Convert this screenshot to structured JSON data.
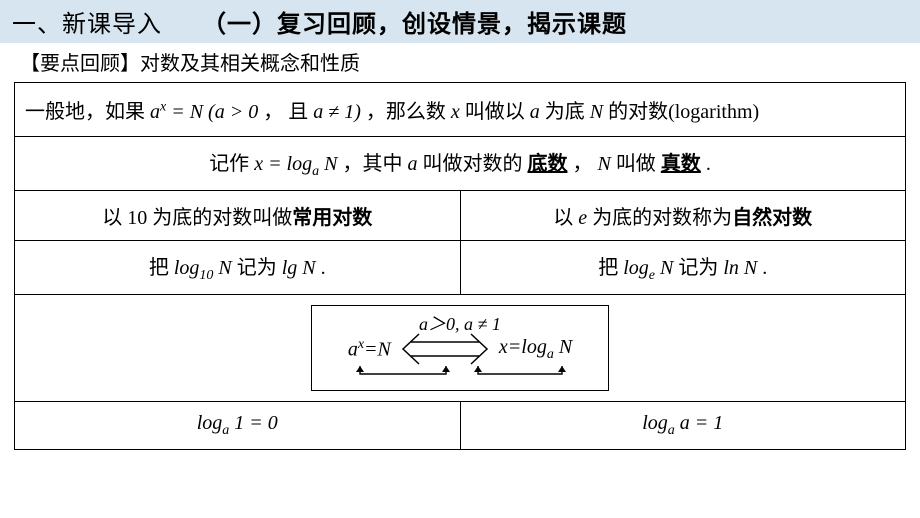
{
  "header": {
    "bg_color": "#d6e5ef",
    "text_color": "#000000",
    "left": "一、新课导入",
    "right": "（一）复习回顾，创设情景，揭示课题"
  },
  "subtitle": {
    "prefix": "【要点回顾】",
    "text": "对数及其相关概念和性质"
  },
  "table": {
    "border_color": "#000000",
    "rows": [
      {
        "type": "full",
        "align": "left",
        "parts": {
          "t1": "一般地，如果",
          "m1": "a<sup>x</sup> = N (a > 0",
          "t2": "， 且",
          "m2": "a ≠ 1)",
          "t3": "，那么数",
          "m3": "x",
          "t4": "叫做以",
          "m4": "a",
          "t5": "为底",
          "m5": "N",
          "t6": "的对数(logarithm)"
        }
      },
      {
        "type": "full",
        "align": "center",
        "parts": {
          "t1": "记作  ",
          "m1": "x = log<sub>a</sub> N",
          "t2": "，其中",
          "m2": "a",
          "t3": "叫做对数的",
          "b1": "底数",
          "t4": "， ",
          "m3": "N",
          "t5": " 叫做",
          "b2": "真数",
          "t6": "."
        }
      },
      {
        "type": "split",
        "left_parts": {
          "t1": "以 10 为底的对数叫做",
          "b1": "常用对数"
        },
        "right_parts": {
          "t1": "以",
          "m1": "e",
          "t2": "为底的对数称为",
          "b1": "自然对数"
        }
      },
      {
        "type": "split",
        "left_parts": {
          "t1": "把",
          "m1": "log<sub>10</sub> N",
          "t2": "记为",
          "m2": "lg N",
          "t3": " ."
        },
        "right_parts": {
          "t1": "把",
          "m1": "log<sub>e</sub> N",
          "t2": "记为",
          "m2": "ln N",
          "t3": " ."
        }
      },
      {
        "type": "diagram",
        "diagram": {
          "left_expr": "a<sup>x</sup>=N",
          "right_expr": "x=log<sub>a</sub> N",
          "condition": "a＞0, a ≠ 1",
          "box_border": "#000000"
        }
      },
      {
        "type": "split",
        "left_parts": {
          "m1": "log<sub>a</sub> 1 = 0"
        },
        "right_parts": {
          "m1": "log<sub>a</sub> a = 1"
        }
      }
    ]
  }
}
